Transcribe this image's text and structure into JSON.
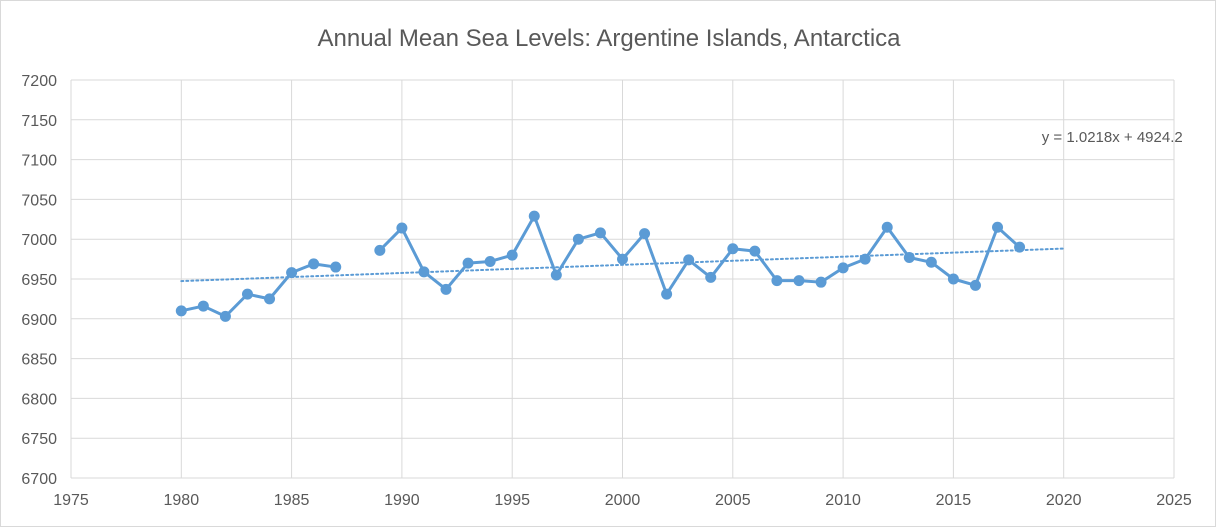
{
  "chart_data": {
    "type": "line",
    "title": "Annual Mean Sea Levels: Argentine Islands, Antarctica",
    "xlabel": "",
    "ylabel": "",
    "xlim": [
      1975,
      2025
    ],
    "ylim": [
      6700,
      7200
    ],
    "xticks": [
      1975,
      1980,
      1985,
      1990,
      1995,
      2000,
      2005,
      2010,
      2015,
      2020,
      2025
    ],
    "yticks": [
      6700,
      6750,
      6800,
      6850,
      6900,
      6950,
      7000,
      7050,
      7100,
      7150,
      7200
    ],
    "grid": true,
    "legend": "none",
    "series": [
      {
        "x": [
          1980,
          1981,
          1982,
          1983,
          1984,
          1985,
          1986,
          1987,
          1988,
          1989,
          1990,
          1991,
          1992,
          1993,
          1994,
          1995,
          1996,
          1997,
          1998,
          1999,
          2000,
          2001,
          2002,
          2003,
          2004,
          2005,
          2006,
          2007,
          2008,
          2009,
          2010,
          2011,
          2012,
          2013,
          2014,
          2015,
          2016,
          2017,
          2018
        ],
        "values": [
          6910,
          6916,
          6903,
          6931,
          6925,
          6958,
          6969,
          6965,
          null,
          6986,
          7014,
          6959,
          6937,
          6970,
          6972,
          6980,
          7029,
          6955,
          7000,
          7008,
          6975,
          7007,
          6931,
          6974,
          6952,
          6988,
          6985,
          6948,
          6948,
          6946,
          6964,
          6975,
          7015,
          6977,
          6971,
          6950,
          6942,
          7015,
          6990
        ],
        "color": "#5b9bd5"
      }
    ],
    "trendline": {
      "type": "linear",
      "slope": 1.0218,
      "intercept": 4924.2,
      "x_range": [
        1980,
        2020
      ],
      "style": "dotted",
      "color": "#5b9bd5",
      "equation_label": "y = 1.0218x + 4924.2"
    }
  }
}
